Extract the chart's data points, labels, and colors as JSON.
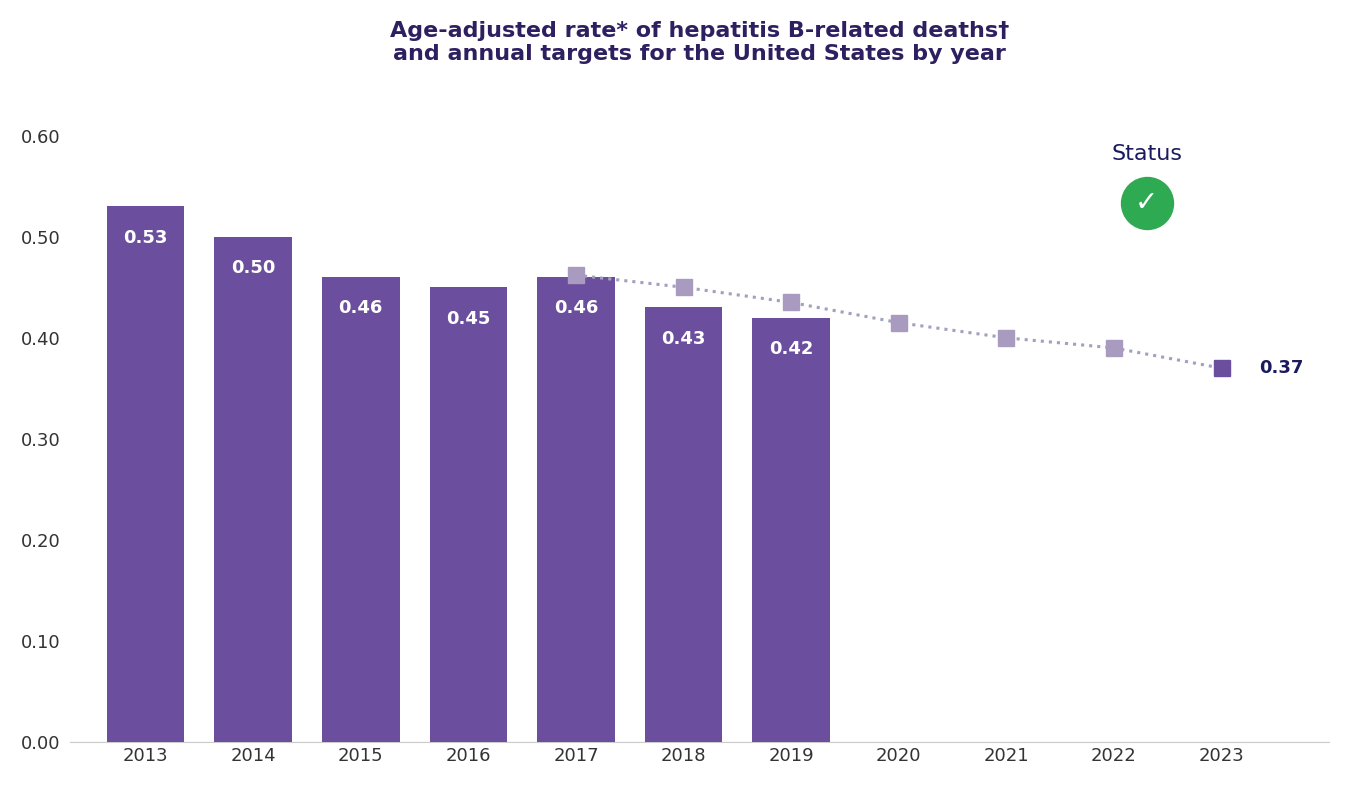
{
  "title_line1": "Age-adjusted rate* of hepatitis B-related deaths†",
  "title_line2": "and annual targets for the United States by year",
  "bar_years": [
    2013,
    2014,
    2015,
    2016,
    2017,
    2018,
    2019
  ],
  "bar_values": [
    0.53,
    0.5,
    0.46,
    0.45,
    0.46,
    0.43,
    0.42
  ],
  "bar_color": "#6b4f9e",
  "bar_label_color": "#ffffff",
  "target_years": [
    2017,
    2018,
    2019,
    2020,
    2021,
    2022,
    2023
  ],
  "target_values": [
    0.462,
    0.45,
    0.435,
    0.415,
    0.4,
    0.39,
    0.37
  ],
  "target_marker_color": "#a99bbf",
  "target_dot_color": "#a0a0bf",
  "final_year": 2023,
  "final_value": 0.37,
  "final_marker_color": "#6b4f9e",
  "final_label_color": "#1a1a5e",
  "all_years": [
    2013,
    2014,
    2015,
    2016,
    2017,
    2018,
    2019,
    2020,
    2021,
    2022,
    2023
  ],
  "ylim": [
    0,
    0.65
  ],
  "yticks": [
    0.0,
    0.1,
    0.2,
    0.3,
    0.4,
    0.5,
    0.6
  ],
  "status_text": "Status",
  "status_color": "#1a1a5e",
  "check_color": "#2eaa52",
  "background_color": "#ffffff",
  "title_color": "#2e2060",
  "tick_label_color": "#333333",
  "bar_width": 0.72
}
